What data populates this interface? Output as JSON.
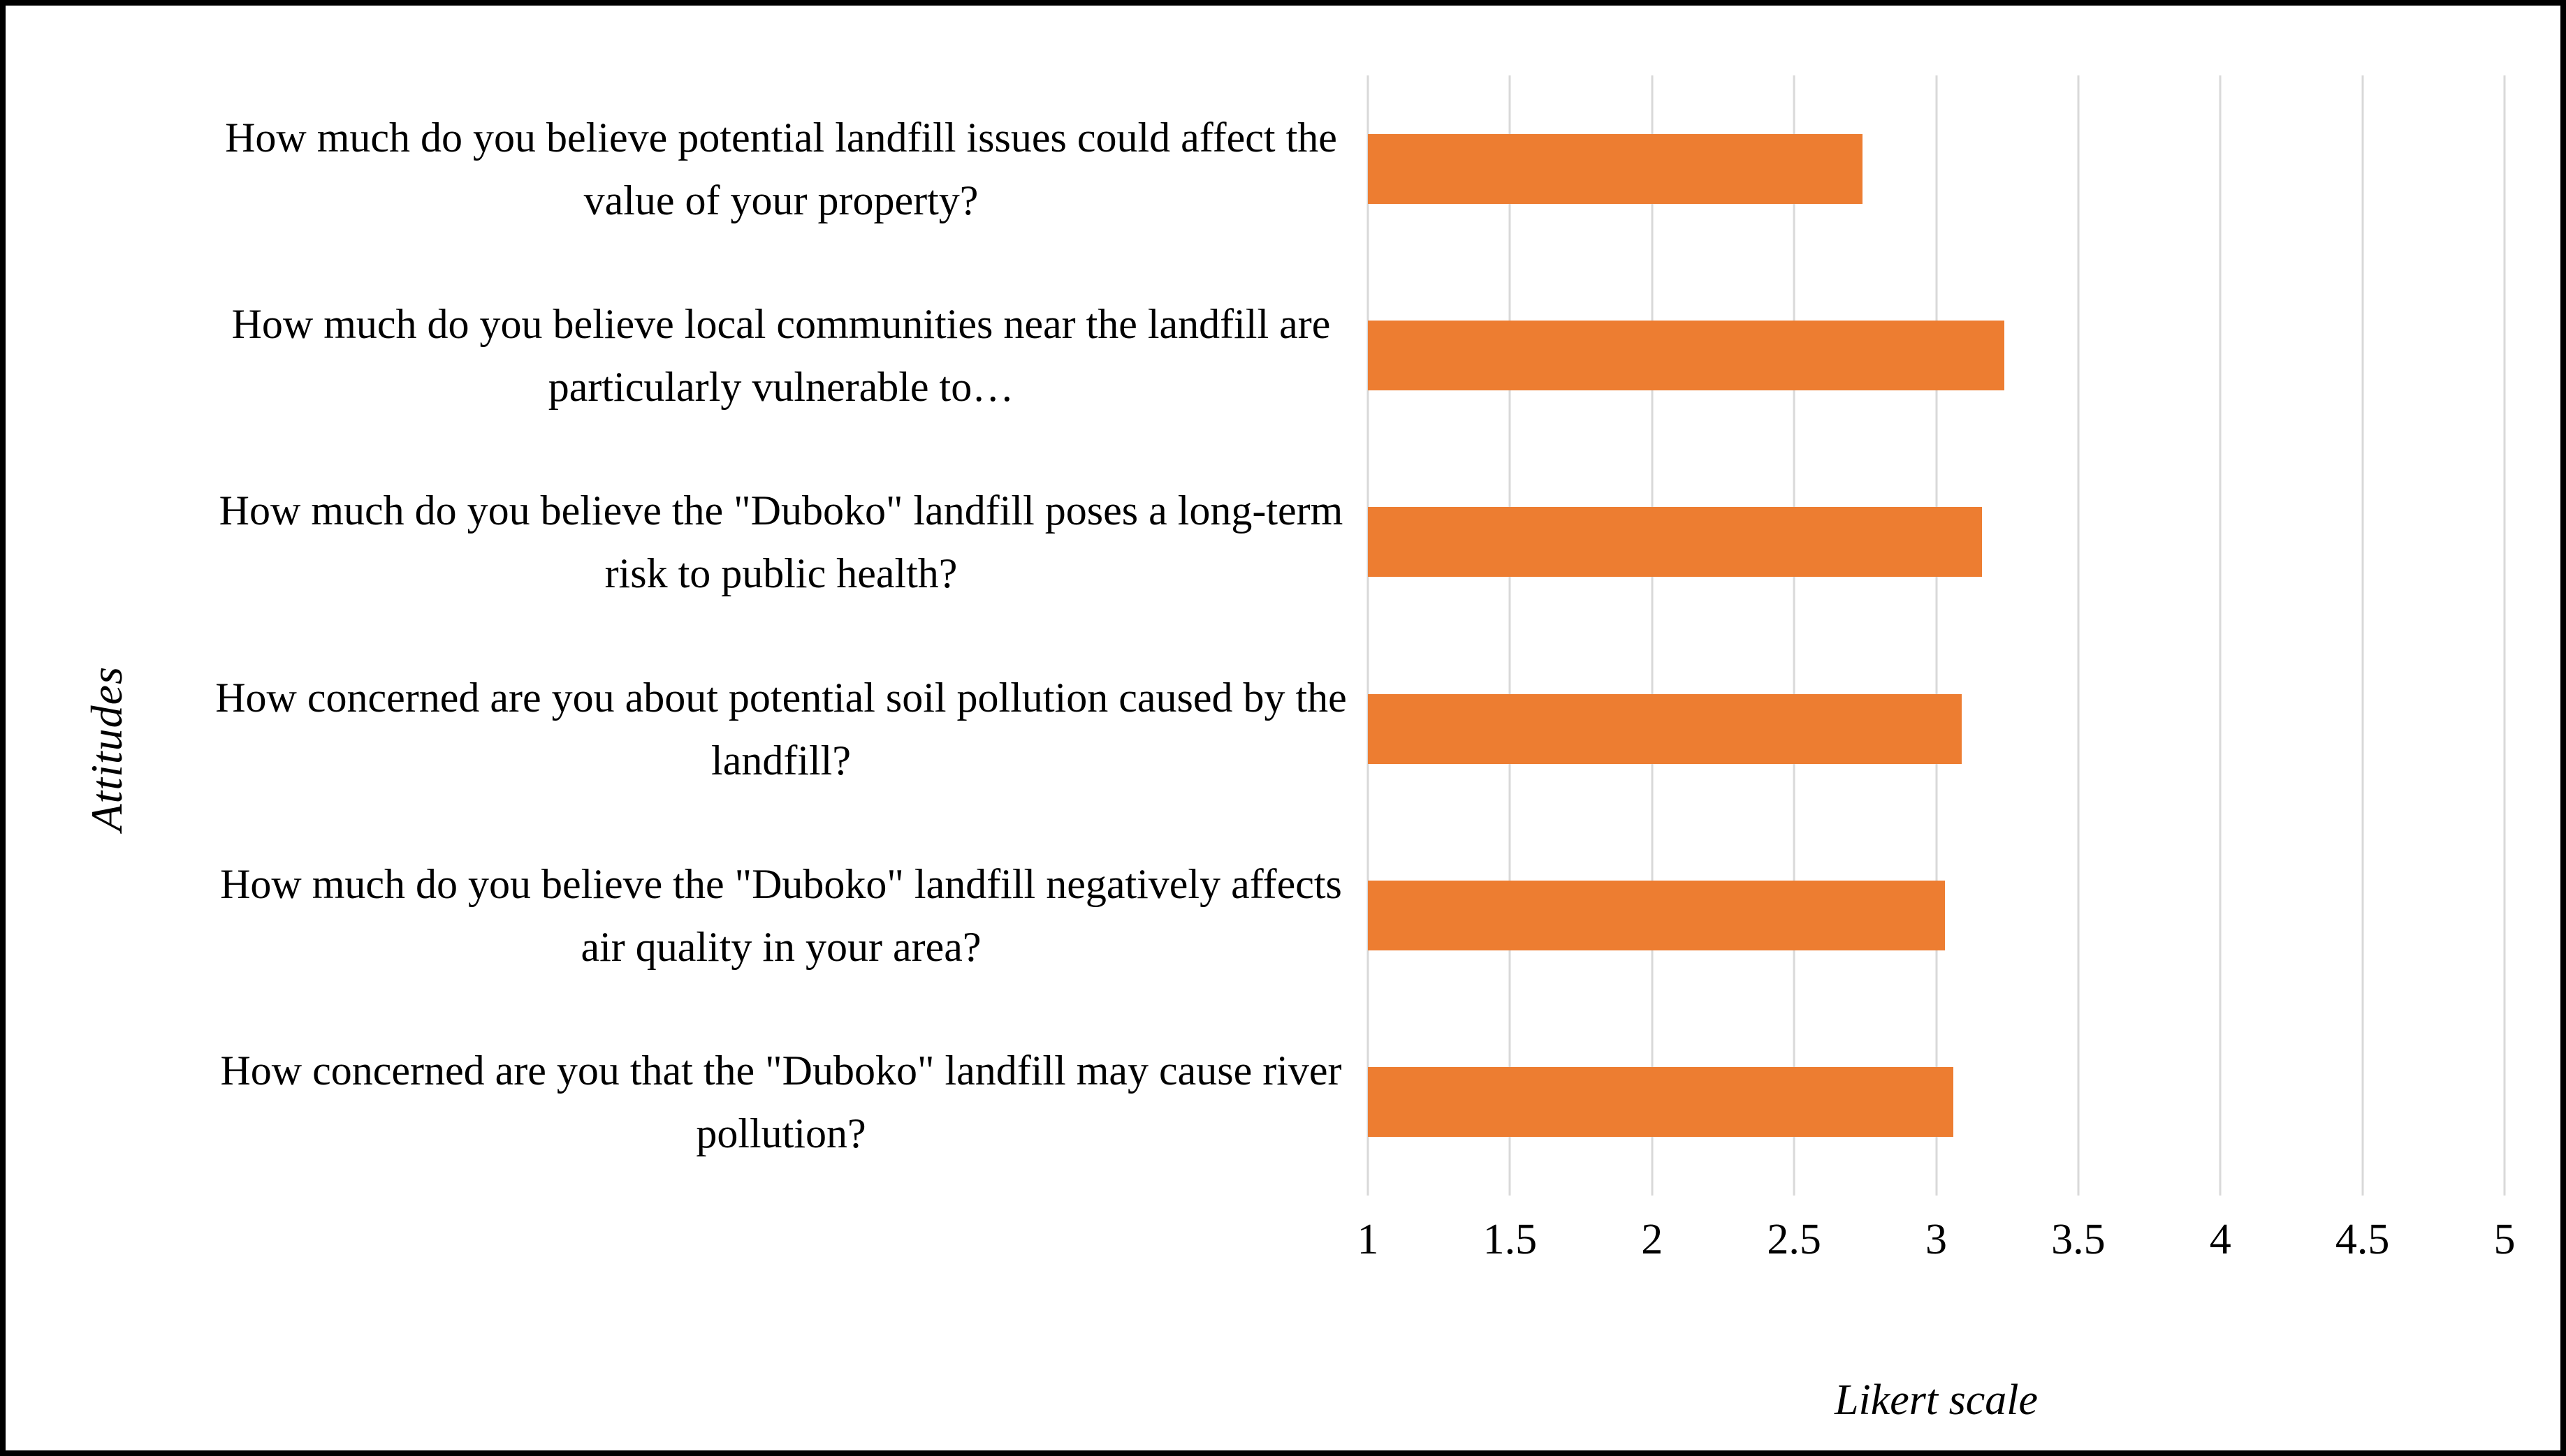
{
  "chart_data": {
    "type": "bar",
    "orientation": "horizontal",
    "title": "",
    "xlabel": "Likert scale",
    "ylabel": "Attitudes",
    "xlim": [
      1,
      5
    ],
    "xticks": [
      "1",
      "1.5",
      "2",
      "2.5",
      "3",
      "3.5",
      "4",
      "4.5",
      "5"
    ],
    "grid": true,
    "legend": "none",
    "bar_color": "#ED7D31",
    "gridline_color": "#D9D9D9",
    "categories": [
      "How much do you believe potential landfill issues could affect the value of your property?",
      "How much do you believe local communities near the landfill are particularly vulnerable to…",
      "How much do you believe the \"Duboko\" landfill poses a long-term risk to public health?",
      "How concerned are you about potential soil pollution caused by the landfill?",
      "How much do you believe the \"Duboko\" landfill negatively affects air quality in your area?",
      "How concerned are you that the \"Duboko\" landfill may cause river pollution?"
    ],
    "values": [
      2.74,
      3.24,
      3.16,
      3.09,
      3.03,
      3.06
    ]
  }
}
